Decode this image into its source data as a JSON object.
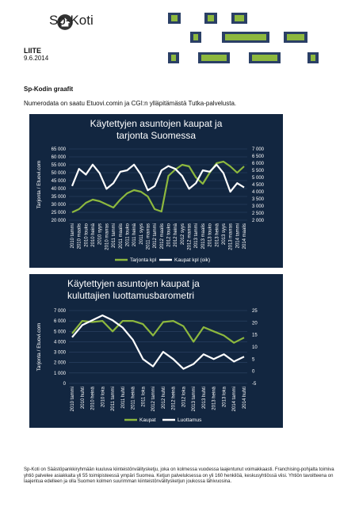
{
  "header": {
    "logo_text": "Sp-Koti",
    "liite": "LIITE",
    "date": "9.6.2014"
  },
  "section_title": "Sp-Kodin graafit",
  "intro": "Numerodata on saatu Etuovi.comin ja CGI:n ylläpitämästä Tutka-palvelusta.",
  "colors": {
    "panel": "#122640",
    "green": "#8DB83E",
    "white": "#FFFFFF",
    "text": "#FFFFFF"
  },
  "chart_data": [
    {
      "type": "line",
      "title": "Käytettyjen asuntojen kaupat ja tarjonta Suomessa",
      "ylabel": "Tarjonta / Etuovi.com",
      "y2label": "",
      "ylim": [
        20000,
        65000
      ],
      "y2lim": [
        2000,
        7000
      ],
      "yticks": [
        "65 000",
        "60 000",
        "55 000",
        "50 000",
        "45 000",
        "40 000",
        "35 000",
        "30 000",
        "25 000",
        "20 000"
      ],
      "y2ticks": [
        "7 000",
        "6 500",
        "6 000",
        "5 500",
        "5 000",
        "4 500",
        "4 000",
        "3 500",
        "3 000",
        "2 500",
        "2 000"
      ],
      "categories": [
        "2010 tammi",
        "2010 maalis",
        "2010 touko",
        "2010 heinä",
        "2010 syys",
        "2010 marras",
        "2011 tammi",
        "2011 maalis",
        "2011 touko",
        "2011 heinä",
        "2011 syys",
        "2011 marras",
        "2012 tammi",
        "2012 maalis",
        "2012 touko",
        "2012 heinä",
        "2012 syys",
        "2012 marras",
        "2013 tammi",
        "2013 maalis",
        "2013 touko",
        "2013 heinä",
        "2013 syys",
        "2013 marras",
        "2014 tammi",
        "2014 maalis"
      ],
      "series": [
        {
          "name": "Tarjonta kpl",
          "axis": "left",
          "color": "#8DB83E",
          "values": [
            25000,
            27000,
            31000,
            33000,
            32000,
            30000,
            28000,
            33000,
            37000,
            39000,
            38000,
            35000,
            27000,
            25500,
            48000,
            52000,
            55000,
            54000,
            47000,
            43000,
            50000,
            56000,
            57000,
            54000,
            50000,
            54000
          ]
        },
        {
          "name": "Kaupat kpl (oik)",
          "axis": "right",
          "color": "#FFFFFF",
          "values": [
            4400,
            5600,
            5200,
            5900,
            5300,
            4200,
            4600,
            5400,
            5500,
            5900,
            5200,
            4100,
            4400,
            5500,
            5800,
            5600,
            5100,
            4200,
            4600,
            5500,
            5400,
            5900,
            5300,
            4000,
            4600,
            4300
          ]
        }
      ],
      "legend": [
        "Tarjonta kpl",
        "Kaupat kpl (oik)"
      ],
      "legend_position": "bottom"
    },
    {
      "type": "line",
      "title": "Käytettyjen asuntojen kaupat ja kuluttajien luottamusbarometri",
      "ylabel": "Tarjonta / Etuovi.com",
      "ylim": [
        0,
        7000
      ],
      "y2lim": [
        -5,
        25
      ],
      "yticks": [
        "7 000",
        "6 000",
        "5 000",
        "4 000",
        "3 000",
        "2 000",
        "1 000",
        "0"
      ],
      "y2ticks": [
        "25",
        "20",
        "15",
        "10",
        "5",
        "0",
        "-5"
      ],
      "categories": [
        "2010 tammi",
        "2010 huhti",
        "2010 heinä",
        "2010 loka",
        "2011 tammi",
        "2011 huhti",
        "2011 heinä",
        "2011 loka",
        "2012 tammi",
        "2012 huhti",
        "2012 heinä",
        "2012 loka",
        "2013 tammi",
        "2013 huhti",
        "2013 heinä",
        "2013 loka",
        "2014 tammi",
        "2014 huhti"
      ],
      "series": [
        {
          "name": "Kaupat",
          "axis": "left",
          "color": "#8DB83E",
          "values": [
            4800,
            6000,
            5900,
            6000,
            5000,
            6000,
            6000,
            5700,
            4600,
            5900,
            6000,
            5500,
            4000,
            5400,
            5000,
            4600,
            3900,
            4400
          ]
        },
        {
          "name": "Luottamus",
          "axis": "right",
          "color": "#FFFFFF",
          "values": [
            14,
            19,
            21,
            23,
            21,
            18,
            13,
            5,
            2,
            8,
            5,
            1,
            3,
            7,
            5,
            7,
            4,
            6
          ]
        }
      ],
      "legend": [
        "Kaupat",
        "Luottamus"
      ],
      "legend_position": "bottom"
    }
  ],
  "footer": "Sp-Koti on Säästöpankkiryhmään kuuluva kiinteistönvälitysketju, joka on kolmessa vuodessa laajentunut voimakkaasti. Franchising-pohjalta toimiva yhtiö palvelee asiakkaita yli 55 toimipisteessä ympäri Suomea. Ketjun palveluksessa on yli 160 henkilöä, keskusyhtiössä viisi. Yhtiön tavoitteena on laajentua edelleen ja olla Suomen kolmen suurimman kiinteistönvälitysketjun joukossa lähivuosina."
}
